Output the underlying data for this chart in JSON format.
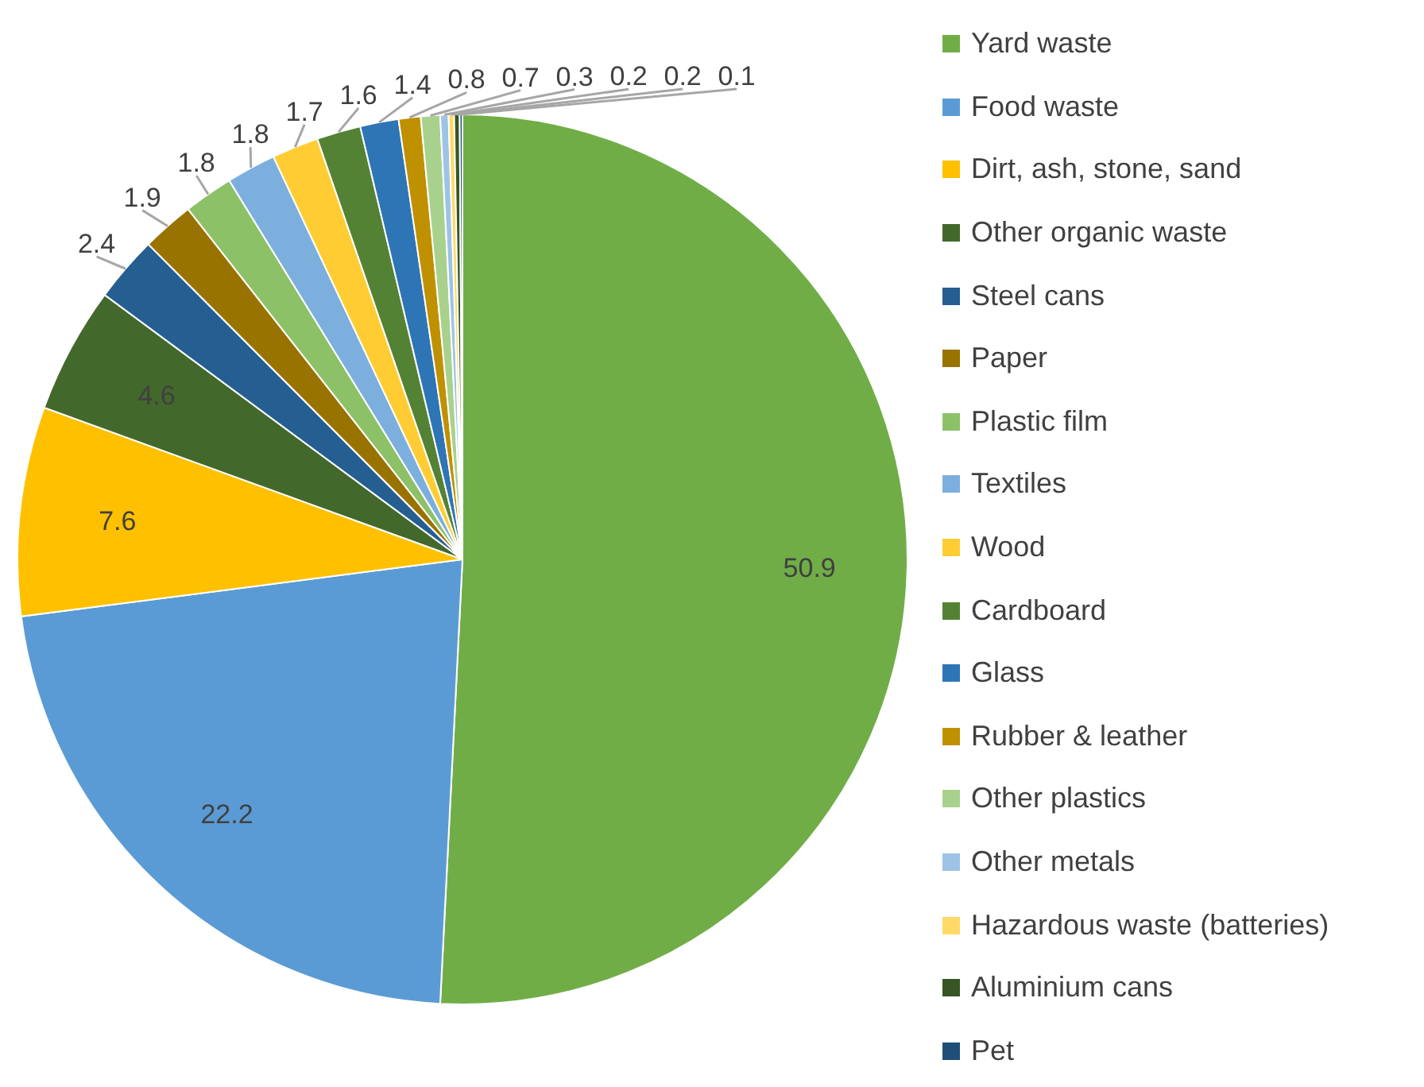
{
  "chart_data": {
    "type": "pie",
    "categories": [
      "Yard waste",
      "Food waste",
      "Dirt, ash, stone, sand",
      "Other organic waste",
      "Steel cans",
      "Paper",
      "Plastic film",
      "Textiles",
      "Wood",
      "Cardboard",
      "Glass",
      "Rubber & leather",
      "Other plastics",
      "Other metals",
      "Hazardous waste (batteries)",
      "Aluminium cans",
      "Pet"
    ],
    "values": [
      50.9,
      22.2,
      7.6,
      4.6,
      2.4,
      1.9,
      1.8,
      1.8,
      1.7,
      1.6,
      1.4,
      0.8,
      0.7,
      0.3,
      0.2,
      0.2,
      0.1
    ],
    "colors": [
      "#70ad47",
      "#5b9bd5",
      "#ffc000",
      "#43682b",
      "#255e91",
      "#997300",
      "#8cc168",
      "#7cafdd",
      "#ffcd33",
      "#548235",
      "#2e75b6",
      "#bf9000",
      "#a9d18e",
      "#9dc3e6",
      "#ffd966",
      "#375623",
      "#1f4e79"
    ],
    "data_labels": true,
    "legend": "right"
  }
}
